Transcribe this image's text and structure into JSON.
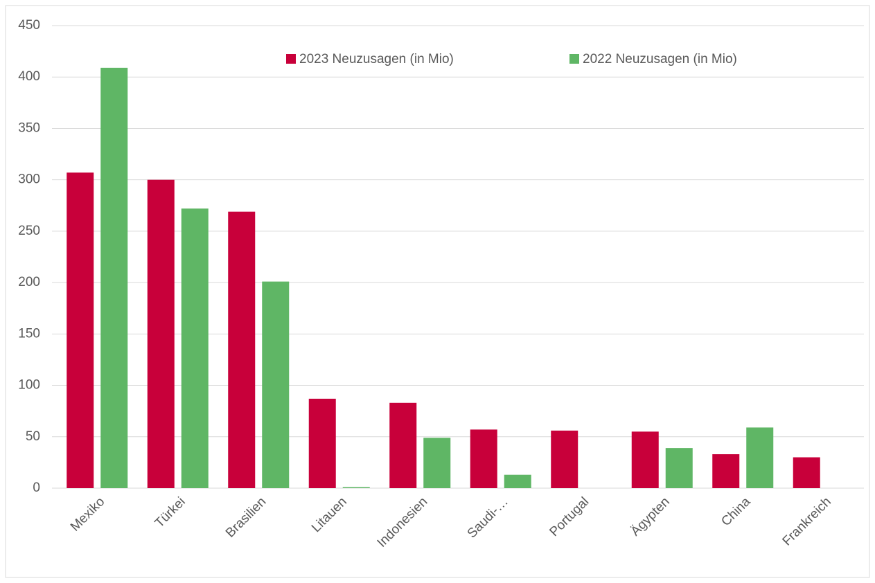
{
  "chart_data": {
    "type": "bar",
    "categories": [
      "Mexiko",
      "Türkei",
      "Brasilien",
      "Litauen",
      "Indonesien",
      "Saudi-…",
      "Portugal",
      "Ägypten",
      "China",
      "Frankreich"
    ],
    "series": [
      {
        "name": "2023 Neuzusagen (in Mio)",
        "color": "#c8003a",
        "values": [
          307,
          300,
          269,
          87,
          83,
          57,
          56,
          55,
          33,
          30
        ]
      },
      {
        "name": "2022 Neuzusagen (in Mio)",
        "color": "#5fb665",
        "values": [
          409,
          272,
          201,
          1,
          49,
          13,
          null,
          39,
          59,
          null
        ]
      }
    ],
    "ylim": [
      0,
      450
    ],
    "yticks": [
      0,
      50,
      100,
      150,
      200,
      250,
      300,
      350,
      400,
      450
    ],
    "grid": true,
    "legend": "top"
  }
}
